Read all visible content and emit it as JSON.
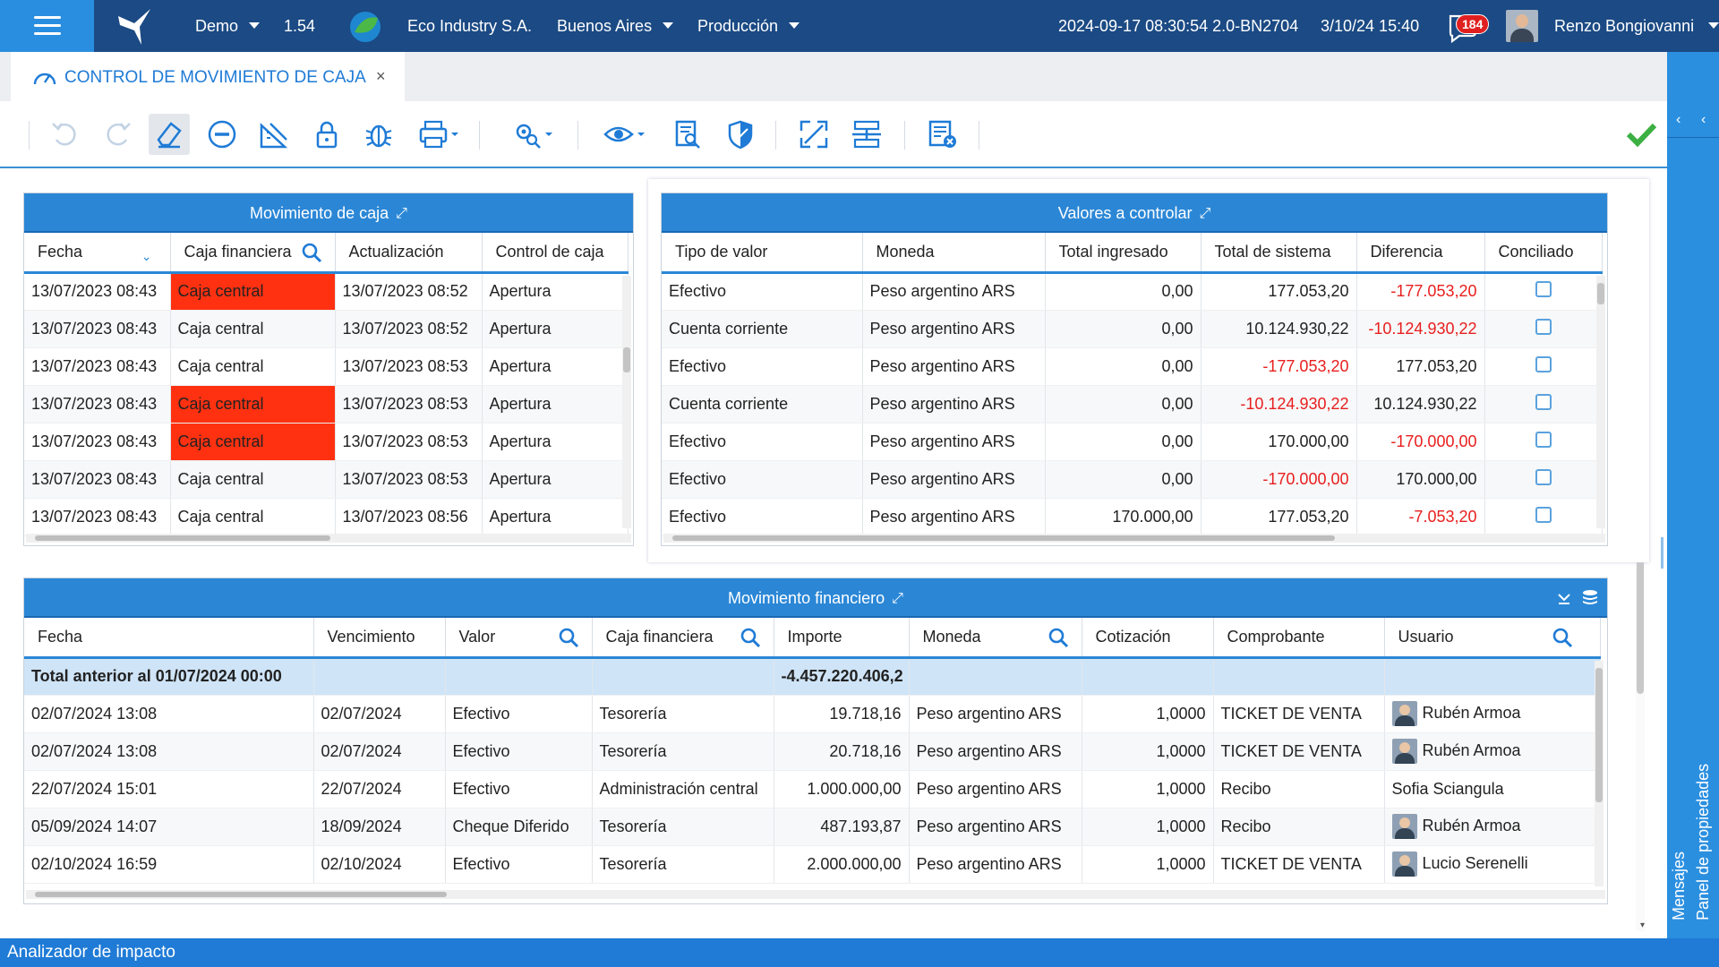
{
  "topbar": {
    "env": "Demo",
    "version": "1.54",
    "company": "Eco Industry S.A.",
    "city": "Buenos Aires",
    "mode": "Producción",
    "build": "2024-09-17 08:30:54 2.0-BN2704",
    "datetime": "3/10/24 15:40",
    "notifications": "184",
    "user": "Renzo Bongiovanni"
  },
  "tab": {
    "title": "CONTROL DE MOVIMIENTO DE CAJA",
    "close": "×"
  },
  "toolbar_icons": [
    "undo-icon",
    "redo-icon",
    "eraser-icon",
    "remove-icon",
    "ruler-icon",
    "lock-icon",
    "bug-icon",
    "print-icon",
    "settings-search-icon",
    "view-icon",
    "report-icon",
    "shield-icon",
    "expand-icon",
    "split-icon",
    "delete-list-icon",
    "confirm-icon"
  ],
  "caja": {
    "title": "Movimiento de caja",
    "columns": [
      "Fecha",
      "Caja financiera",
      "Actualización",
      "Control de caja"
    ],
    "rows": [
      {
        "fecha": "13/07/2023 08:43",
        "caja": "Caja central",
        "act": "13/07/2023 08:52",
        "control": "Apertura",
        "red": true
      },
      {
        "fecha": "13/07/2023 08:43",
        "caja": "Caja central",
        "act": "13/07/2023 08:52",
        "control": "Apertura",
        "red": false
      },
      {
        "fecha": "13/07/2023 08:43",
        "caja": "Caja central",
        "act": "13/07/2023 08:53",
        "control": "Apertura",
        "red": false
      },
      {
        "fecha": "13/07/2023 08:43",
        "caja": "Caja central",
        "act": "13/07/2023 08:53",
        "control": "Apertura",
        "red": true
      },
      {
        "fecha": "13/07/2023 08:43",
        "caja": "Caja central",
        "act": "13/07/2023 08:53",
        "control": "Apertura",
        "red": true
      },
      {
        "fecha": "13/07/2023 08:43",
        "caja": "Caja central",
        "act": "13/07/2023 08:53",
        "control": "Apertura",
        "red": false
      },
      {
        "fecha": "13/07/2023 08:43",
        "caja": "Caja central",
        "act": "13/07/2023 08:56",
        "control": "Apertura",
        "red": false
      }
    ]
  },
  "valores": {
    "title": "Valores a controlar",
    "columns": [
      "Tipo de valor",
      "Moneda",
      "Total ingresado",
      "Total de sistema",
      "Diferencia",
      "Conciliado"
    ],
    "rows": [
      {
        "tipo": "Efectivo",
        "moneda": "Peso argentino ARS",
        "ingresado": "0,00",
        "sistema": "177.053,20",
        "sistema_neg": false,
        "dif": "-177.053,20",
        "dif_neg": true
      },
      {
        "tipo": "Cuenta corriente",
        "moneda": "Peso argentino ARS",
        "ingresado": "0,00",
        "sistema": "10.124.930,22",
        "sistema_neg": false,
        "dif": "-10.124.930,22",
        "dif_neg": true
      },
      {
        "tipo": "Efectivo",
        "moneda": "Peso argentino ARS",
        "ingresado": "0,00",
        "sistema": "-177.053,20",
        "sistema_neg": true,
        "dif": "177.053,20",
        "dif_neg": false
      },
      {
        "tipo": "Cuenta corriente",
        "moneda": "Peso argentino ARS",
        "ingresado": "0,00",
        "sistema": "-10.124.930,22",
        "sistema_neg": true,
        "dif": "10.124.930,22",
        "dif_neg": false
      },
      {
        "tipo": "Efectivo",
        "moneda": "Peso argentino ARS",
        "ingresado": "0,00",
        "sistema": "170.000,00",
        "sistema_neg": false,
        "dif": "-170.000,00",
        "dif_neg": true
      },
      {
        "tipo": "Efectivo",
        "moneda": "Peso argentino ARS",
        "ingresado": "0,00",
        "sistema": "-170.000,00",
        "sistema_neg": true,
        "dif": "170.000,00",
        "dif_neg": false
      },
      {
        "tipo": "Efectivo",
        "moneda": "Peso argentino ARS",
        "ingresado": "170.000,00",
        "sistema": "177.053,20",
        "sistema_neg": false,
        "dif": "-7.053,20",
        "dif_neg": true
      }
    ]
  },
  "financiero": {
    "title": "Movimiento financiero",
    "columns": [
      "Fecha",
      "Vencimiento",
      "Valor",
      "Caja financiera",
      "Importe",
      "Moneda",
      "Cotización",
      "Comprobante",
      "Usuario"
    ],
    "total": {
      "label": "Total anterior al 01/07/2024 00:00",
      "importe": "-4.457.220.406,2"
    },
    "rows": [
      {
        "fecha": "02/07/2024 13:08",
        "venc": "02/07/2024",
        "valor": "Efectivo",
        "caja": "Tesorería",
        "importe": "19.718,16",
        "moneda": "Peso argentino ARS",
        "cot": "1,0000",
        "comp": "TICKET DE VENTA",
        "usuario": "Rubén Armoa",
        "avatar": true
      },
      {
        "fecha": "02/07/2024 13:08",
        "venc": "02/07/2024",
        "valor": "Efectivo",
        "caja": "Tesorería",
        "importe": "20.718,16",
        "moneda": "Peso argentino ARS",
        "cot": "1,0000",
        "comp": "TICKET DE VENTA",
        "usuario": "Rubén Armoa",
        "avatar": true
      },
      {
        "fecha": "22/07/2024 15:01",
        "venc": "22/07/2024",
        "valor": "Efectivo",
        "caja": "Administración central",
        "importe": "1.000.000,00",
        "moneda": "Peso argentino ARS",
        "cot": "1,0000",
        "comp": "Recibo",
        "usuario": "Sofia Sciangula",
        "avatar": false
      },
      {
        "fecha": "05/09/2024 14:07",
        "venc": "18/09/2024",
        "valor": "Cheque Diferido",
        "caja": "Tesorería",
        "importe": "487.193,87",
        "moneda": "Peso argentino ARS",
        "cot": "1,0000",
        "comp": "Recibo",
        "usuario": "Rubén Armoa",
        "avatar": true
      },
      {
        "fecha": "02/10/2024 16:59",
        "venc": "02/10/2024",
        "valor": "Efectivo",
        "caja": "Tesorería",
        "importe": "2.000.000,00",
        "moneda": "Peso argentino ARS",
        "cot": "1,0000",
        "comp": "TICKET DE VENTA",
        "usuario": "Lucio Serenelli",
        "avatar": true
      }
    ]
  },
  "side": {
    "mensajes": "Mensajes",
    "propiedades": "Panel de propiedades"
  },
  "status": "Analizador de impacto",
  "colors": {
    "brand": "#1b4a84",
    "accent": "#2b87d6",
    "alert": "#ff3111",
    "negative": "#e81e1e",
    "ok": "#3cb043"
  }
}
